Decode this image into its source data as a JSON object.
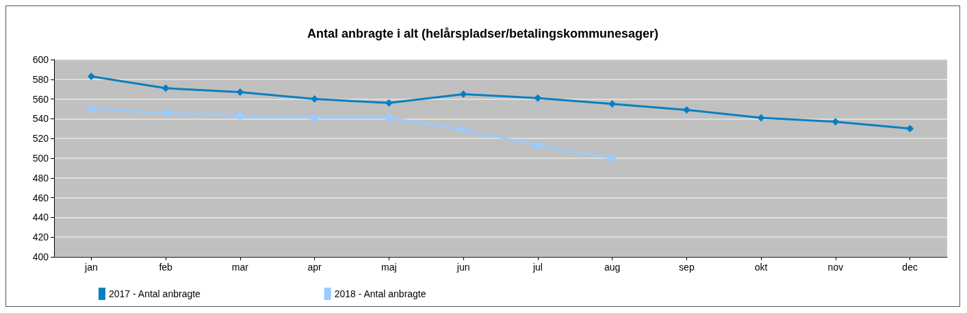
{
  "chart_data": {
    "type": "line",
    "title": "Antal anbragte i alt (helårspladser/betalingskommunesager)",
    "categories": [
      "jan",
      "feb",
      "mar",
      "apr",
      "maj",
      "jun",
      "jul",
      "aug",
      "sep",
      "okt",
      "nov",
      "dec"
    ],
    "series": [
      {
        "name": "2017 - Antal anbragte",
        "color": "#0a7fc0",
        "marker": "diamond",
        "values": [
          583,
          571,
          567,
          560,
          556,
          565,
          561,
          555,
          549,
          541,
          537,
          530
        ]
      },
      {
        "name": "2018 - Antal anbragte",
        "color": "#99ccff",
        "marker": "circle",
        "values": [
          550,
          546,
          543,
          541,
          541,
          529,
          513,
          500,
          null,
          null,
          null,
          null
        ]
      }
    ],
    "ylim": [
      400,
      600
    ],
    "yticks": [
      400,
      420,
      440,
      460,
      480,
      500,
      520,
      540,
      560,
      580,
      600
    ],
    "grid": "y",
    "legend": "bottom"
  }
}
